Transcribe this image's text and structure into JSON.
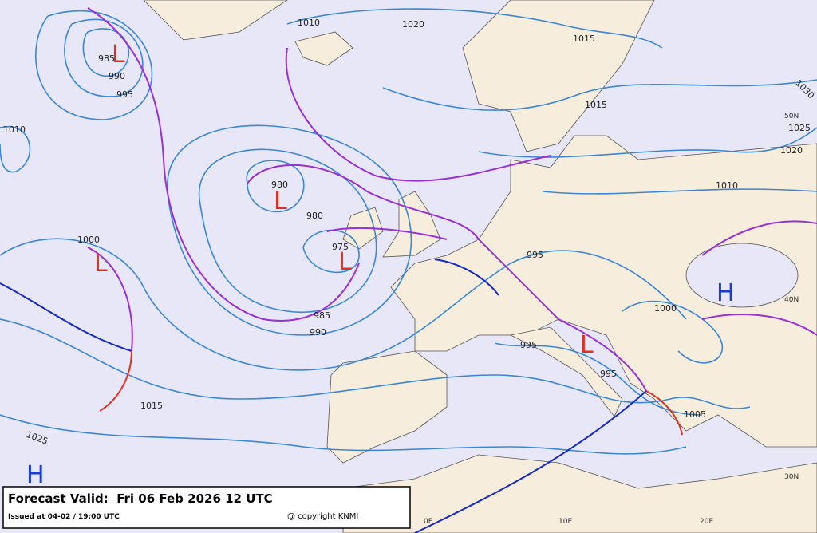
{
  "isobar_labels": [
    985,
    990,
    995,
    1010,
    1010,
    1020,
    1015,
    1015,
    1030,
    1025,
    1020,
    1010,
    980,
    980,
    975,
    1000,
    995,
    1000,
    995,
    995,
    1005,
    985,
    990,
    1015,
    1025
  ],
  "pressure_centers": [
    "L",
    "L",
    "L",
    "L",
    "L",
    "H",
    "H"
  ],
  "grid_labels": [
    "50N",
    "40N",
    "30N",
    "0E",
    "10E",
    "20E"
  ],
  "footer": {
    "forecast": "Forecast Valid:  Fri 06 Feb 2026 12 UTC",
    "issued": "Issued at 04-02 / 19:00 UTC",
    "copyright": "@ copyright KNMI"
  }
}
